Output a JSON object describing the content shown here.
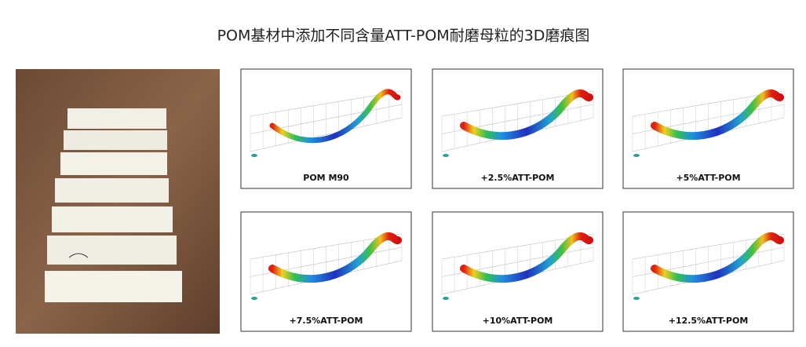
{
  "title": "POM基材中添加不同含量ATT-POM耐磨母粒的3D磨痕图",
  "panels": [
    {
      "label": "POM M90"
    },
    {
      "label": "+2.5%ATT-POM"
    },
    {
      "label": "+5%ATT-POM"
    },
    {
      "label": "+7.5%ATT-POM"
    },
    {
      "label": "+10%ATT-POM"
    },
    {
      "label": "+12.5%ATT-POM"
    }
  ]
}
